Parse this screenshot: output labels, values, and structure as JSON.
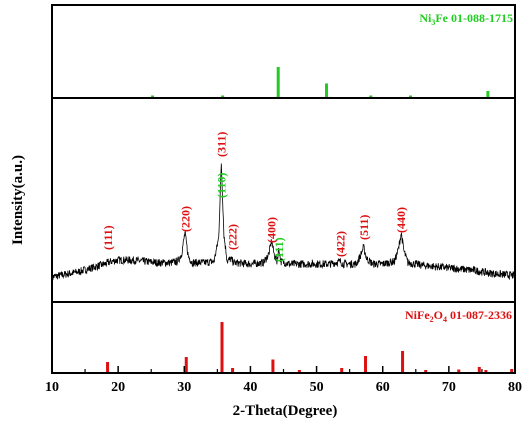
{
  "chart_data": {
    "type": "line",
    "xlabel": "2-Theta(Degree)",
    "ylabel": "Intensity(a.u.)",
    "xlim": [
      10,
      80
    ],
    "x_ticks": [
      "10",
      "20",
      "30",
      "40",
      "50",
      "60",
      "70",
      "80"
    ],
    "grid": false,
    "colors": {
      "frame": "#000000",
      "ni3fe": "#22cc22",
      "nife2o4": "#dd1111",
      "pattern": "#000000"
    },
    "reference_top": {
      "name": "Ni3Fe 01-088-1715",
      "label_prefix": "Ni",
      "label_sub": "3",
      "label_suffix": "Fe 01-088-1715",
      "peaks": [
        {
          "x": 25.2,
          "i": 5
        },
        {
          "x": 35.8,
          "i": 5
        },
        {
          "x": 44.2,
          "i": 100
        },
        {
          "x": 51.5,
          "i": 45
        },
        {
          "x": 58.2,
          "i": 5
        },
        {
          "x": 64.2,
          "i": 5
        },
        {
          "x": 75.9,
          "i": 20
        }
      ]
    },
    "pattern": {
      "points": [
        [
          10,
          10
        ],
        [
          12,
          12
        ],
        [
          14,
          14
        ],
        [
          16,
          17
        ],
        [
          18,
          20
        ],
        [
          19,
          22
        ],
        [
          20,
          23
        ],
        [
          22,
          23
        ],
        [
          24,
          22
        ],
        [
          26,
          21
        ],
        [
          28,
          21
        ],
        [
          29,
          22
        ],
        [
          29.6,
          28
        ],
        [
          30.1,
          44
        ],
        [
          30.6,
          26
        ],
        [
          31.2,
          21
        ],
        [
          33,
          21
        ],
        [
          34.5,
          22
        ],
        [
          35.2,
          40
        ],
        [
          35.6,
          98
        ],
        [
          36.0,
          42
        ],
        [
          36.5,
          22
        ],
        [
          37.0,
          24
        ],
        [
          37.5,
          21
        ],
        [
          40,
          20
        ],
        [
          42,
          21
        ],
        [
          42.8,
          28
        ],
        [
          43.2,
          38
        ],
        [
          43.6,
          27
        ],
        [
          44.0,
          22
        ],
        [
          44.3,
          32
        ],
        [
          44.6,
          22
        ],
        [
          46,
          20
        ],
        [
          48,
          20
        ],
        [
          50,
          20
        ],
        [
          52,
          20
        ],
        [
          53.6,
          22
        ],
        [
          54,
          20
        ],
        [
          56,
          20
        ],
        [
          56.6,
          26
        ],
        [
          57.1,
          33
        ],
        [
          57.6,
          24
        ],
        [
          58.5,
          20
        ],
        [
          60,
          20
        ],
        [
          61.8,
          22
        ],
        [
          62.4,
          32
        ],
        [
          62.8,
          44
        ],
        [
          63.2,
          30
        ],
        [
          63.8,
          21
        ],
        [
          66,
          19
        ],
        [
          70,
          17
        ],
        [
          74,
          15
        ],
        [
          76,
          13
        ],
        [
          78,
          12
        ],
        [
          80,
          11
        ]
      ],
      "peak_labels": [
        {
          "x": 18.5,
          "text": "(111)",
          "phase": "nife2o4"
        },
        {
          "x": 30.2,
          "text": "(220)",
          "phase": "nife2o4"
        },
        {
          "x": 35.6,
          "text": "(311)",
          "phase": "nife2o4"
        },
        {
          "x": 35.6,
          "text": "(110)",
          "phase": "ni3fe"
        },
        {
          "x": 37.3,
          "text": "(222)",
          "phase": "nife2o4"
        },
        {
          "x": 43.2,
          "text": "(400)",
          "phase": "nife2o4"
        },
        {
          "x": 44.3,
          "text": "(111)",
          "phase": "ni3fe"
        },
        {
          "x": 53.6,
          "text": "(422)",
          "phase": "nife2o4"
        },
        {
          "x": 57.2,
          "text": "(511)",
          "phase": "nife2o4"
        },
        {
          "x": 62.8,
          "text": "(440)",
          "phase": "nife2o4"
        }
      ]
    },
    "reference_bottom": {
      "name": "NiFe2O4 01-087-2336",
      "label_prefix": "NiFe",
      "label_sub": "2",
      "label_mid": "O",
      "label_sub2": "4",
      "label_suffix": " 01-087-2336",
      "peaks": [
        {
          "x": 18.4,
          "i": 20
        },
        {
          "x": 30.3,
          "i": 30
        },
        {
          "x": 35.7,
          "i": 100
        },
        {
          "x": 37.3,
          "i": 8
        },
        {
          "x": 43.4,
          "i": 25
        },
        {
          "x": 47.4,
          "i": 4
        },
        {
          "x": 53.8,
          "i": 8
        },
        {
          "x": 57.4,
          "i": 32
        },
        {
          "x": 63.0,
          "i": 42
        },
        {
          "x": 66.5,
          "i": 4
        },
        {
          "x": 71.5,
          "i": 5
        },
        {
          "x": 74.6,
          "i": 10
        },
        {
          "x": 75.6,
          "i": 4
        },
        {
          "x": 79.5,
          "i": 6
        }
      ]
    }
  }
}
